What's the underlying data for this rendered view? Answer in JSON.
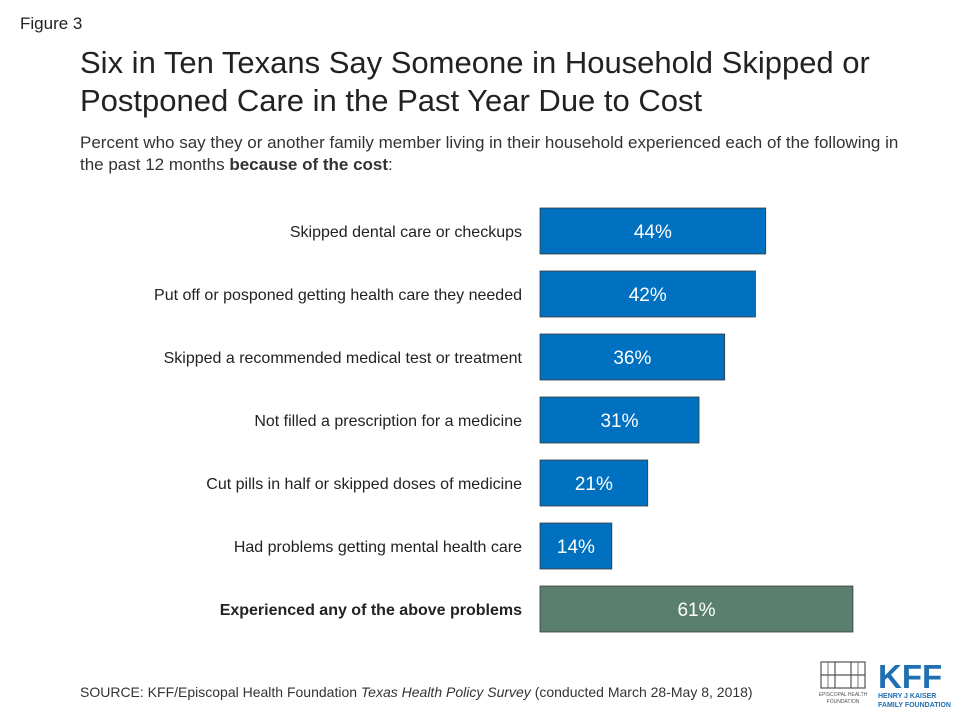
{
  "figure_label": "Figure 3",
  "title": "Six in Ten Texans Say Someone in Household Skipped or Postponed Care in the Past Year Due to Cost",
  "subtitle_main": "Percent who say they or another family member living in their household experienced each of the following in the past 12 months ",
  "subtitle_bold": "because of the cost",
  "subtitle_end": ":",
  "source_prefix": "SOURCE: KFF/Episcopal Health Foundation ",
  "source_survey": "Texas Health Policy Survey",
  "source_suffix": " (conducted March 28-May 8, 2018)",
  "logos": {
    "ehf_line1": "EPISCOPAL HEALTH",
    "ehf_line2": "FOUNDATION",
    "kff_name": "KFF",
    "kff_line1": "HENRY J KAISER",
    "kff_line2": "FAMILY FOUNDATION"
  },
  "colors": {
    "bar": "#0070C0",
    "bar_total": "#5B7F6E",
    "kff_blue": "#1F6FB2"
  },
  "chart_data": {
    "type": "bar",
    "orientation": "horizontal",
    "categories": [
      "Skipped dental care or checkups",
      "Put off or posponed getting health care they needed",
      "Skipped a recommended medical test or treatment",
      "Not filled a prescription for a medicine",
      "Cut pills in half or skipped doses of medicine",
      "Had problems getting mental health care",
      "Experienced any of the above problems"
    ],
    "values": [
      44,
      42,
      36,
      31,
      21,
      14,
      61
    ],
    "value_labels": [
      "44%",
      "42%",
      "36%",
      "31%",
      "21%",
      "14%",
      "61%"
    ],
    "highlight": [
      false,
      false,
      false,
      false,
      false,
      false,
      true
    ],
    "xlim": [
      0,
      100
    ],
    "grid": false
  }
}
